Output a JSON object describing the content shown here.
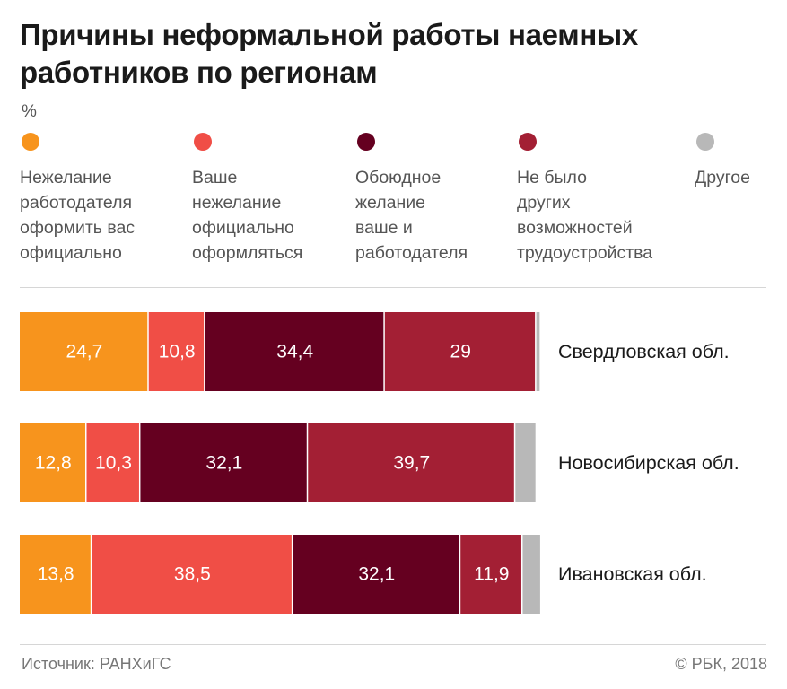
{
  "chart_data": {
    "type": "bar",
    "orientation": "horizontal",
    "stacked": true,
    "title": "Причины неформальной работы наемных работников по регионам",
    "unit": "%",
    "categories": [
      "Свердловская обл.",
      "Новосибирская обл.",
      "Ивановская обл."
    ],
    "series": [
      {
        "name": "Нежелание работодателя оформить вас официально",
        "color": "#F7941D",
        "values": [
          24.7,
          12.8,
          13.8
        ],
        "labels": [
          "24,7",
          "12,8",
          "13,8"
        ]
      },
      {
        "name": "Ваше нежелание официально оформляться",
        "color": "#F04E46",
        "values": [
          10.8,
          10.3,
          38.5
        ],
        "labels": [
          "10,8",
          "10,3",
          "38,5"
        ]
      },
      {
        "name": "Обоюдное желание ваше и работодателя",
        "color": "#650020",
        "values": [
          34.4,
          32.1,
          32.1
        ],
        "labels": [
          "34,4",
          "32,1",
          "32,1"
        ]
      },
      {
        "name": "Не было других возможностей трудоустройства",
        "color": "#A31F34",
        "values": [
          29,
          39.7,
          11.9
        ],
        "labels": [
          "29",
          "39,7",
          "11,9"
        ]
      },
      {
        "name": "Другое",
        "color": "#B8B8B8",
        "values": [
          0.9,
          4.1,
          3.6
        ],
        "labels": [
          "",
          "",
          ""
        ]
      }
    ],
    "xlim": [
      0,
      100
    ],
    "legend_position": "top",
    "grid": false
  },
  "legend_text": [
    "Нежелание\nработодателя\nоформить вас\nофициально",
    "Ваше\nнежелание\nофициально\nоформляться",
    "Обоюдное\nжелание\nваше и\nработодателя",
    "Не было\nдругих\nвозможностей\nтрудоустройства",
    "Другое"
  ],
  "footer": {
    "source": "Источник: РАНХиГС",
    "copyright": "© РБК, 2018"
  }
}
